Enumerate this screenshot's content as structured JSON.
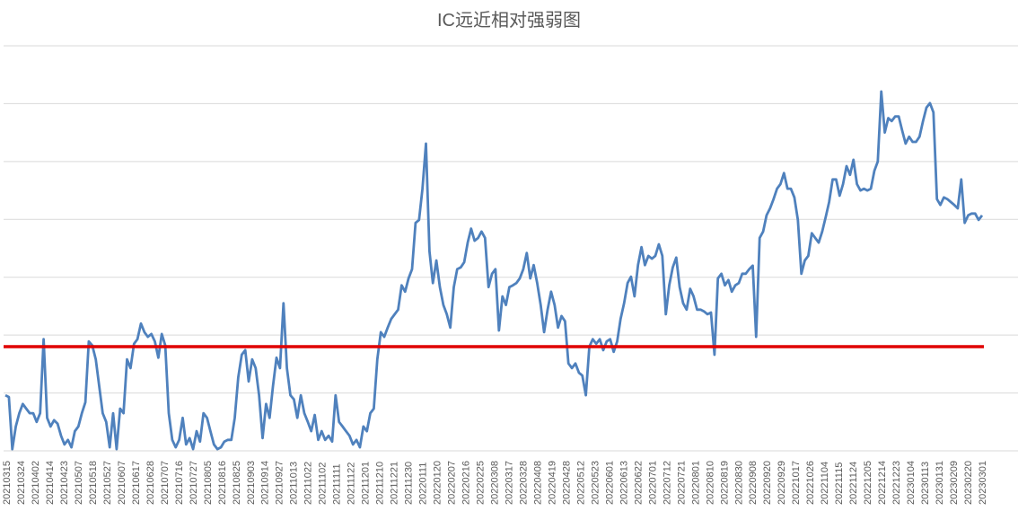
{
  "chart_data": {
    "type": "line",
    "title": "IC远近相对强弱图",
    "xlabel": "",
    "ylabel": "",
    "y_tick_labels_shown": false,
    "ylim": [
      0,
      7
    ],
    "grid": "horizontal",
    "legend": "none",
    "x_tick_labels": [
      "20210315",
      "20210324",
      "20210402",
      "20210414",
      "20210423",
      "20210507",
      "20210518",
      "20210527",
      "20210607",
      "20210617",
      "20210628",
      "20210707",
      "20210716",
      "20210727",
      "20210805",
      "20210816",
      "20210825",
      "20210903",
      "20210914",
      "20210927",
      "20211013",
      "20211022",
      "20211102",
      "20211111",
      "20211122",
      "20211201",
      "20211210",
      "20211221",
      "20211230",
      "20220111",
      "20220120",
      "20220207",
      "20220216",
      "20220225",
      "20220308",
      "20220317",
      "20220328",
      "20220408",
      "20220419",
      "20220428",
      "20220512",
      "20220523",
      "20220601",
      "20220613",
      "20220622",
      "20220701",
      "20220712",
      "20220721",
      "20220801",
      "20220810",
      "20220819",
      "20220830",
      "20220908",
      "20220920",
      "20220929",
      "20221017",
      "20221026",
      "20221104",
      "20221115",
      "20221124",
      "20221205",
      "20221214",
      "20221223",
      "20230104",
      "20230113",
      "20230131",
      "20230209",
      "20230220",
      "20230301"
    ],
    "series": [
      {
        "color": "#4f81bd",
        "values": [
          0.96,
          0.93,
          0.03,
          0.42,
          0.65,
          0.81,
          0.73,
          0.65,
          0.65,
          0.5,
          0.65,
          1.93,
          0.57,
          0.42,
          0.53,
          0.47,
          0.26,
          0.11,
          0.19,
          0.06,
          0.34,
          0.42,
          0.65,
          0.84,
          1.89,
          1.82,
          1.58,
          1.12,
          0.65,
          0.5,
          0.06,
          0.65,
          0.03,
          0.73,
          0.65,
          1.58,
          1.43,
          1.85,
          1.93,
          2.2,
          2.05,
          1.97,
          2.02,
          1.89,
          1.61,
          2.02,
          1.82,
          0.65,
          0.19,
          0.06,
          0.19,
          0.57,
          0.11,
          0.22,
          0.03,
          0.34,
          0.16,
          0.65,
          0.57,
          0.34,
          0.11,
          0.03,
          0.06,
          0.16,
          0.19,
          0.19,
          0.57,
          1.27,
          1.66,
          1.74,
          1.2,
          1.58,
          1.43,
          0.96,
          0.22,
          0.81,
          0.57,
          1.12,
          1.61,
          1.43,
          2.55,
          1.43,
          0.96,
          0.89,
          0.57,
          0.96,
          0.65,
          0.5,
          0.34,
          0.62,
          0.19,
          0.34,
          0.19,
          0.26,
          0.16,
          0.96,
          0.5,
          0.42,
          0.34,
          0.26,
          0.11,
          0.19,
          0.06,
          0.42,
          0.34,
          0.65,
          0.73,
          1.58,
          2.05,
          1.97,
          2.13,
          2.28,
          2.36,
          2.44,
          2.86,
          2.75,
          2.98,
          3.14,
          3.94,
          3.99,
          4.53,
          5.31,
          3.45,
          2.9,
          3.29,
          2.83,
          2.52,
          2.36,
          2.13,
          2.83,
          3.14,
          3.17,
          3.26,
          3.6,
          3.84,
          3.63,
          3.68,
          3.79,
          3.68,
          2.83,
          3.06,
          3.14,
          2.08,
          2.67,
          2.52,
          2.83,
          2.86,
          2.9,
          2.98,
          3.14,
          3.42,
          2.98,
          3.21,
          2.9,
          2.52,
          2.05,
          2.44,
          2.75,
          2.52,
          2.13,
          2.33,
          2.24,
          1.51,
          1.43,
          1.51,
          1.35,
          1.3,
          0.96,
          1.8,
          1.93,
          1.85,
          1.93,
          1.74,
          1.89,
          1.93,
          1.71,
          1.89,
          2.28,
          2.55,
          2.9,
          3.01,
          2.67,
          3.21,
          3.52,
          3.21,
          3.37,
          3.32,
          3.37,
          3.57,
          3.37,
          2.36,
          2.86,
          3.17,
          3.34,
          2.83,
          2.55,
          2.44,
          2.8,
          2.67,
          2.44,
          2.44,
          2.41,
          2.36,
          2.39,
          1.66,
          2.98,
          3.06,
          2.86,
          2.95,
          2.75,
          2.86,
          2.9,
          3.06,
          3.06,
          3.14,
          3.2,
          1.97,
          3.68,
          3.79,
          4.07,
          4.19,
          4.35,
          4.53,
          4.61,
          4.8,
          4.53,
          4.53,
          4.38,
          3.99,
          3.06,
          3.29,
          3.37,
          3.76,
          3.68,
          3.6,
          3.79,
          4.04,
          4.3,
          4.69,
          4.69,
          4.41,
          4.61,
          4.92,
          4.77,
          5.03,
          4.61,
          4.5,
          4.53,
          4.5,
          4.53,
          4.84,
          5.0,
          6.21,
          5.5,
          5.75,
          5.7,
          5.78,
          5.78,
          5.54,
          5.31,
          5.43,
          5.34,
          5.34,
          5.43,
          5.7,
          5.93,
          6.01,
          5.85,
          4.35,
          4.25,
          4.38,
          4.35,
          4.3,
          4.25,
          4.19,
          4.69,
          3.94,
          4.07,
          4.1,
          4.1,
          3.99,
          4.07
        ]
      }
    ],
    "reference_line": {
      "value": 1.8,
      "color": "#e00000"
    }
  }
}
